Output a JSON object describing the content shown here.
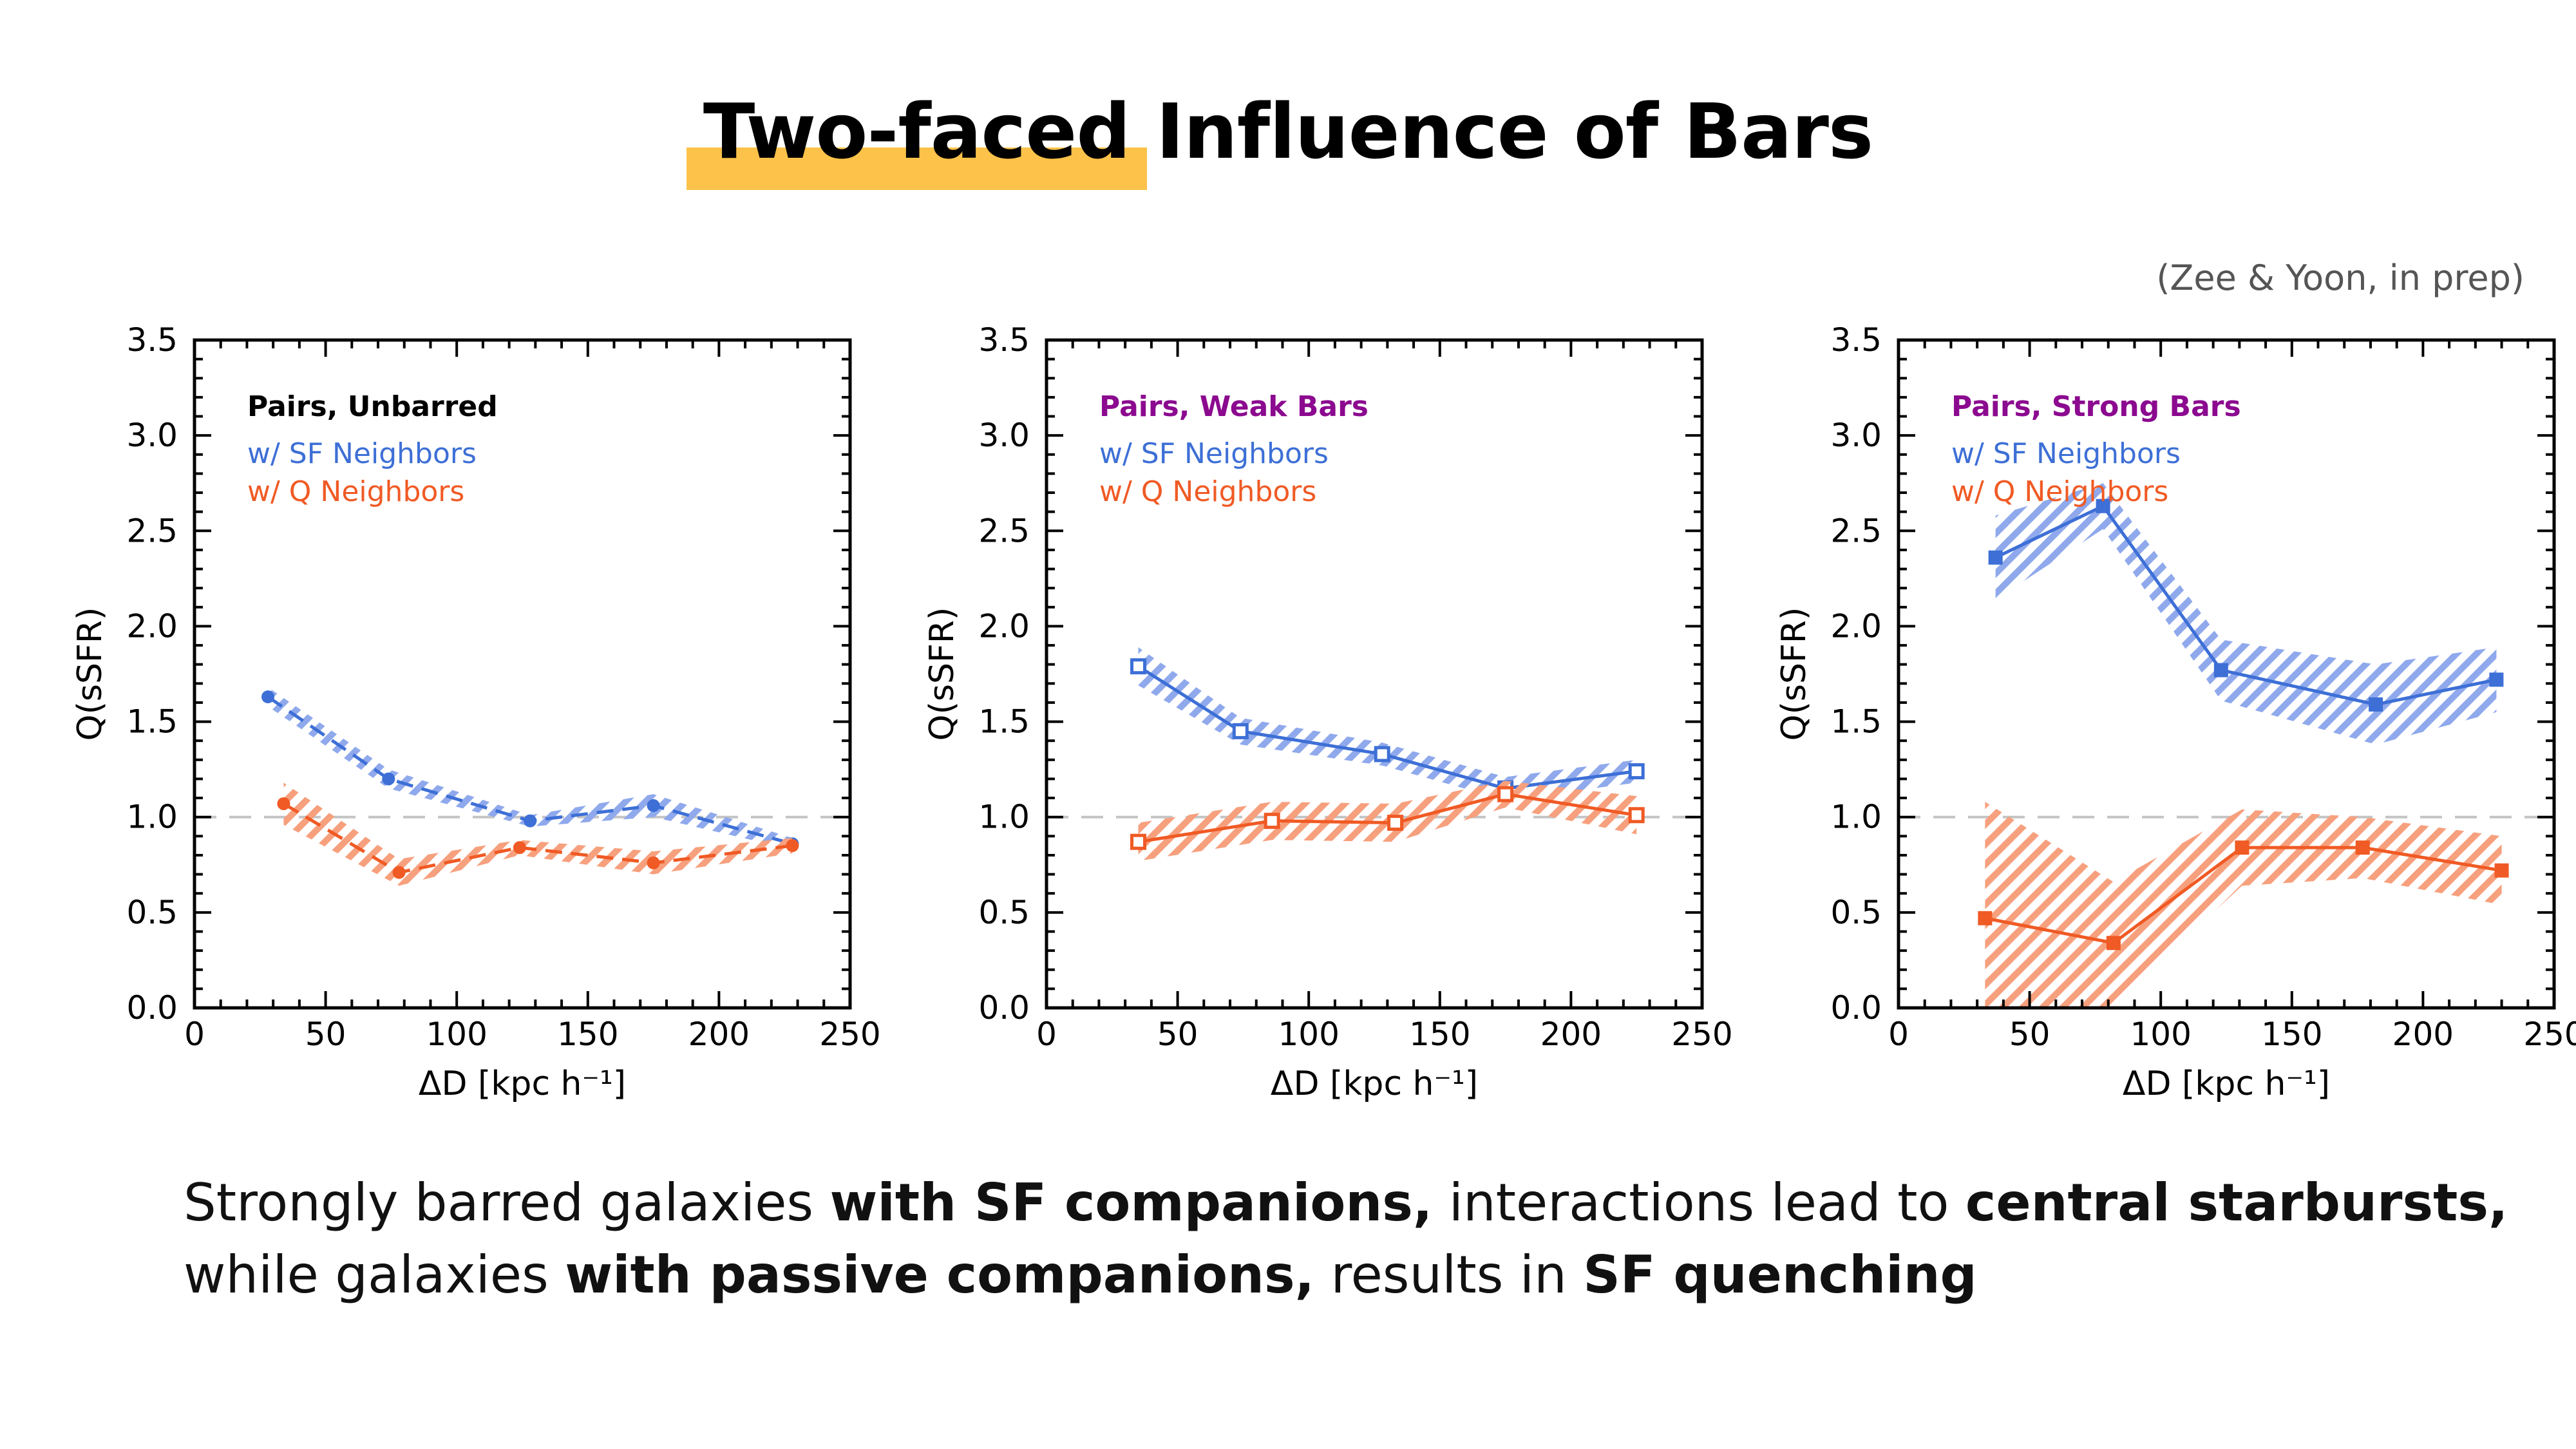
{
  "slide": {
    "title_highlight": "Two-faced",
    "title_rest": " Influence of Bars",
    "credit": "(Zee & Yoon, in prep)",
    "caption": {
      "l1_a": "Strongly barred galaxies ",
      "l1_b": "with SF companions,",
      "l1_c": " interactions lead to ",
      "l1_d": "central starbursts,",
      "l2_a": "while galaxies ",
      "l2_b": "with passive companions,",
      "l2_c": " results in ",
      "l2_d": "SF quenching"
    }
  },
  "colors": {
    "sf": "#3d6fd6",
    "sf_band": "#8fa9ec",
    "q": "#f05a24",
    "q_band": "#f7a07e",
    "title_unbarred": "#000000",
    "title_bars": "#8b0a8f",
    "highlight": "#fcc24a"
  },
  "chart_data": [
    {
      "type": "line",
      "panel_title": "Pairs, Unbarred",
      "xlabel": "ΔD [kpc h⁻¹]",
      "ylabel": "Q(sSFR)",
      "xlim": [
        0,
        250
      ],
      "ylim": [
        0,
        3.5
      ],
      "xticks": [
        0,
        50,
        100,
        150,
        200,
        250
      ],
      "yticks": [
        0.0,
        0.5,
        1.0,
        1.5,
        2.0,
        2.5,
        3.0,
        3.5
      ],
      "reference_line": 1.0,
      "line_style": "dashed",
      "marker": "circle",
      "series": [
        {
          "name": "w/ SF Neighbors",
          "x": [
            28,
            74,
            128,
            175,
            228
          ],
          "y": [
            1.63,
            1.2,
            0.98,
            1.06,
            0.86
          ],
          "upper": [
            1.68,
            1.25,
            1.01,
            1.12,
            0.89
          ],
          "lower": [
            1.58,
            1.15,
            0.95,
            1.0,
            0.83
          ]
        },
        {
          "name": "w/ Q Neighbors",
          "x": [
            34,
            78,
            124,
            175,
            228
          ],
          "y": [
            1.07,
            0.71,
            0.84,
            0.76,
            0.85
          ],
          "upper": [
            1.18,
            0.78,
            0.88,
            0.82,
            0.89
          ],
          "lower": [
            0.96,
            0.64,
            0.8,
            0.7,
            0.81
          ]
        }
      ]
    },
    {
      "type": "line",
      "panel_title": "Pairs, Weak Bars",
      "xlabel": "ΔD [kpc h⁻¹]",
      "ylabel": "Q(sSFR)",
      "xlim": [
        0,
        250
      ],
      "ylim": [
        0,
        3.5
      ],
      "xticks": [
        0,
        50,
        100,
        150,
        200,
        250
      ],
      "yticks": [
        0.0,
        0.5,
        1.0,
        1.5,
        2.0,
        2.5,
        3.0,
        3.5
      ],
      "reference_line": 1.0,
      "line_style": "solid",
      "marker": "open-square",
      "series": [
        {
          "name": "w/ SF Neighbors",
          "x": [
            35,
            74,
            128,
            175,
            225
          ],
          "y": [
            1.79,
            1.45,
            1.33,
            1.15,
            1.24
          ],
          "upper": [
            1.89,
            1.52,
            1.39,
            1.21,
            1.3
          ],
          "lower": [
            1.69,
            1.38,
            1.27,
            1.09,
            1.18
          ]
        },
        {
          "name": "w/ Q Neighbors",
          "x": [
            35,
            86,
            133,
            175,
            225
          ],
          "y": [
            0.87,
            0.98,
            0.97,
            1.12,
            1.01
          ],
          "upper": [
            0.97,
            1.08,
            1.07,
            1.19,
            1.11
          ],
          "lower": [
            0.77,
            0.88,
            0.87,
            1.05,
            0.91
          ]
        }
      ]
    },
    {
      "type": "line",
      "panel_title": "Pairs, Strong Bars",
      "xlabel": "ΔD [kpc h⁻¹]",
      "ylabel": "Q(sSFR)",
      "xlim": [
        0,
        250
      ],
      "ylim": [
        0,
        3.5
      ],
      "xticks": [
        0,
        50,
        100,
        150,
        200,
        250
      ],
      "yticks": [
        0.0,
        0.5,
        1.0,
        1.5,
        2.0,
        2.5,
        3.0,
        3.5
      ],
      "reference_line": 1.0,
      "line_style": "solid",
      "marker": "filled-square",
      "series": [
        {
          "name": "w/ SF Neighbors",
          "x": [
            37,
            78,
            123,
            182,
            228
          ],
          "y": [
            2.36,
            2.63,
            1.77,
            1.59,
            1.72
          ],
          "upper": [
            2.58,
            2.75,
            1.93,
            1.8,
            1.89
          ],
          "lower": [
            2.14,
            2.51,
            1.61,
            1.38,
            1.55
          ]
        },
        {
          "name": "w/ Q Neighbors",
          "x": [
            33,
            82,
            131,
            177,
            230
          ],
          "y": [
            0.47,
            0.34,
            0.84,
            0.84,
            0.72
          ],
          "upper": [
            1.08,
            0.66,
            1.04,
            1.0,
            0.9
          ],
          "lower": [
            -0.14,
            0.02,
            0.64,
            0.68,
            0.54
          ]
        }
      ]
    }
  ]
}
